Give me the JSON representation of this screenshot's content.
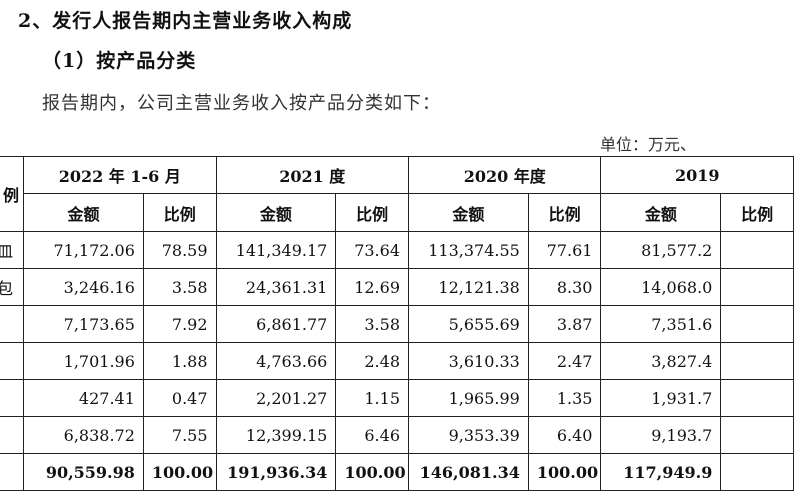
{
  "heading_1": "2、发行人报告期内主营业务收入构成",
  "heading_2": "（1）按产品分类",
  "paragraph": "报告期内，公司主营业务收入按产品分类如下：",
  "unit_note": "单位：万元、",
  "table": {
    "first_col_header": "例",
    "periods": [
      "2022 年 1-6 月",
      "2021 度",
      "2020 年度",
      "2019"
    ],
    "sub_headers": {
      "amount": "金额",
      "ratio": "比例"
    },
    "rows": [
      {
        "name": "皿",
        "cells": [
          "71,172.06",
          "78.59",
          "141,349.17",
          "73.64",
          "113,374.55",
          "77.61",
          "81,577.2"
        ]
      },
      {
        "name": "包",
        "cells": [
          "3,246.16",
          "3.58",
          "24,361.31",
          "12.69",
          "12,121.38",
          "8.30",
          "14,068.0"
        ]
      },
      {
        "name": "",
        "cells": [
          "7,173.65",
          "7.92",
          "6,861.77",
          "3.58",
          "5,655.69",
          "3.87",
          "7,351.6"
        ]
      },
      {
        "name": "",
        "cells": [
          "1,701.96",
          "1.88",
          "4,763.66",
          "2.48",
          "3,610.33",
          "2.47",
          "3,827.4"
        ]
      },
      {
        "name": "",
        "cells": [
          "427.41",
          "0.47",
          "2,201.27",
          "1.15",
          "1,965.99",
          "1.35",
          "1,931.7"
        ]
      },
      {
        "name": "",
        "cells": [
          "6,838.72",
          "7.55",
          "12,399.15",
          "6.46",
          "9,353.39",
          "6.40",
          "9,193.7"
        ]
      }
    ],
    "total_row": {
      "name": "",
      "cells": [
        "90,559.98",
        "100.00",
        "191,936.34",
        "100.00",
        "146,081.34",
        "100.00",
        "117,949.9"
      ]
    }
  }
}
